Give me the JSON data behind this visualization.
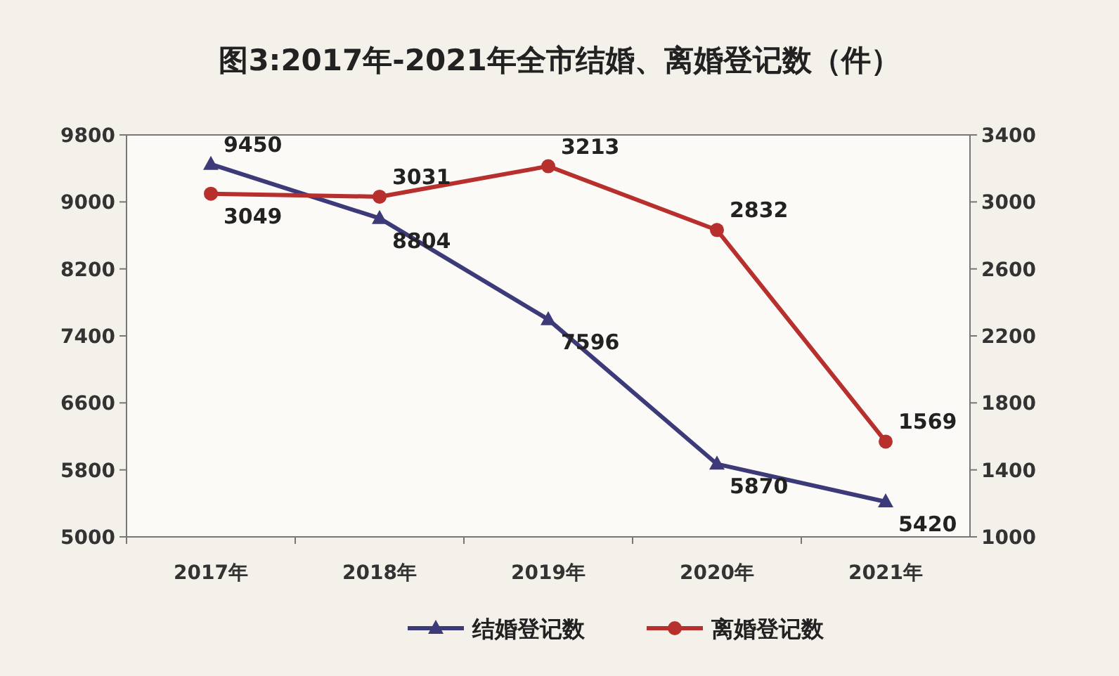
{
  "chart_data": {
    "type": "line",
    "title": "图3:2017年-2021年全市结婚、离婚登记数（件）",
    "categories": [
      "2017年",
      "2018年",
      "2019年",
      "2020年",
      "2021年"
    ],
    "series": [
      {
        "name": "结婚登记数",
        "color": "#3c3a78",
        "marker": "triangle",
        "values": [
          9450,
          8804,
          7596,
          5870,
          5420
        ]
      },
      {
        "name": "离婚登记数",
        "color": "#b8302e",
        "marker": "circle",
        "axis": "y2",
        "values": [
          3049,
          3031,
          3213,
          2832,
          1569
        ]
      }
    ],
    "ylim": [
      5000,
      9800
    ],
    "yticks": [
      5000,
      5800,
      6600,
      7400,
      8200,
      9000,
      9800
    ],
    "y2lim": [
      1000,
      3400
    ],
    "y2ticks": [
      1000,
      1400,
      1800,
      2200,
      2600,
      3000,
      3400
    ],
    "data_labels": true,
    "legend": "bottom",
    "grid": false
  }
}
